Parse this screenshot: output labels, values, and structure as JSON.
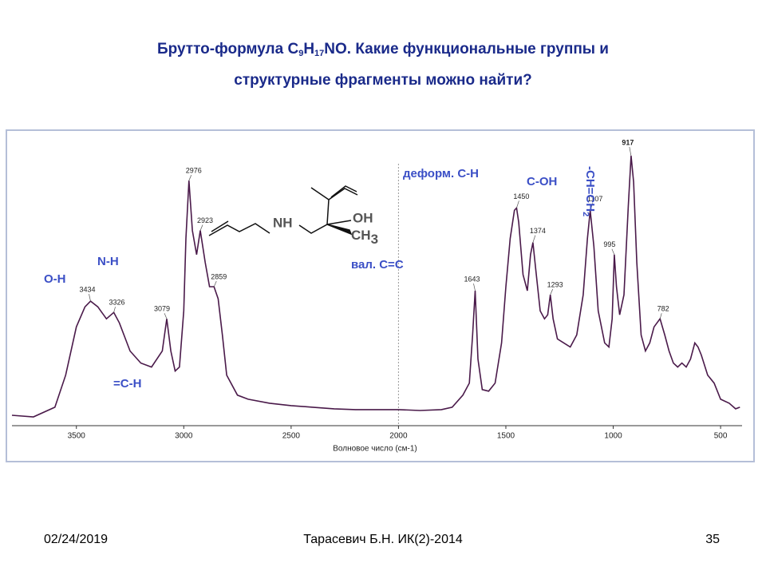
{
  "chart_data": {
    "type": "line",
    "title_line1": [
      "Брутто-формула C",
      "9",
      "H",
      "17",
      "NO. Какие функциональные группы и"
    ],
    "title_line2": "структурные фрагменты можно найти?",
    "x_label": "Волновое число (см-1)",
    "xlim": [
      3800,
      400
    ],
    "xticks": [
      3500,
      3000,
      2500,
      2000,
      1500,
      1000,
      500
    ],
    "color": "#4a1a4a",
    "x": [
      3800,
      3700,
      3600,
      3550,
      3500,
      3460,
      3434,
      3400,
      3360,
      3326,
      3300,
      3250,
      3200,
      3150,
      3100,
      3079,
      3060,
      3040,
      3020,
      3000,
      2990,
      2976,
      2960,
      2940,
      2923,
      2900,
      2880,
      2859,
      2840,
      2820,
      2800,
      2750,
      2700,
      2600,
      2500,
      2400,
      2300,
      2200,
      2100,
      2000,
      1900,
      1800,
      1750,
      1700,
      1670,
      1655,
      1643,
      1630,
      1610,
      1580,
      1550,
      1520,
      1500,
      1480,
      1460,
      1450,
      1440,
      1420,
      1400,
      1385,
      1374,
      1360,
      1340,
      1320,
      1305,
      1293,
      1280,
      1260,
      1230,
      1200,
      1170,
      1140,
      1120,
      1107,
      1090,
      1070,
      1040,
      1020,
      1005,
      995,
      985,
      970,
      950,
      930,
      917,
      905,
      890,
      870,
      850,
      830,
      810,
      782,
      760,
      740,
      720,
      700,
      680,
      660,
      640,
      620,
      605,
      590,
      560,
      530,
      500,
      460,
      430,
      410
    ],
    "values": [
      2,
      0,
      12,
      52,
      112,
      137,
      144,
      137,
      122,
      130,
      117,
      82,
      67,
      62,
      82,
      122,
      82,
      57,
      62,
      132,
      222,
      294,
      232,
      202,
      232,
      192,
      162,
      162,
      147,
      102,
      52,
      27,
      22,
      17,
      14,
      12,
      10,
      9,
      9,
      9,
      8,
      9,
      12,
      27,
      42,
      102,
      157,
      72,
      34,
      32,
      42,
      92,
      162,
      222,
      257,
      260,
      242,
      177,
      157,
      202,
      217,
      182,
      132,
      122,
      127,
      152,
      122,
      97,
      92,
      87,
      102,
      152,
      222,
      257,
      212,
      132,
      92,
      87,
      122,
      202,
      162,
      127,
      152,
      262,
      325,
      292,
      192,
      102,
      82,
      92,
      112,
      122,
      102,
      82,
      67,
      62,
      67,
      62,
      72,
      92,
      87,
      77,
      52,
      42,
      22,
      17,
      10,
      12
    ],
    "peaks": [
      3434,
      3326,
      3079,
      2976,
      2923,
      2859,
      1643,
      1450,
      1374,
      1293,
      1107,
      995,
      917,
      782
    ],
    "annotations": [
      "O-H",
      "N-H",
      "=C-H",
      "вал. C=C",
      "деформ. C-H",
      "C-OH",
      "-CH=CH",
      "2"
    ],
    "structure": {
      "amine": "NH",
      "hydroxyl": "OH",
      "methyl": [
        "CH",
        "3"
      ]
    }
  },
  "footer": {
    "date": "02/24/2019",
    "author": "Тарасевич Б.Н. ИК(2)-2014",
    "page": "35"
  }
}
